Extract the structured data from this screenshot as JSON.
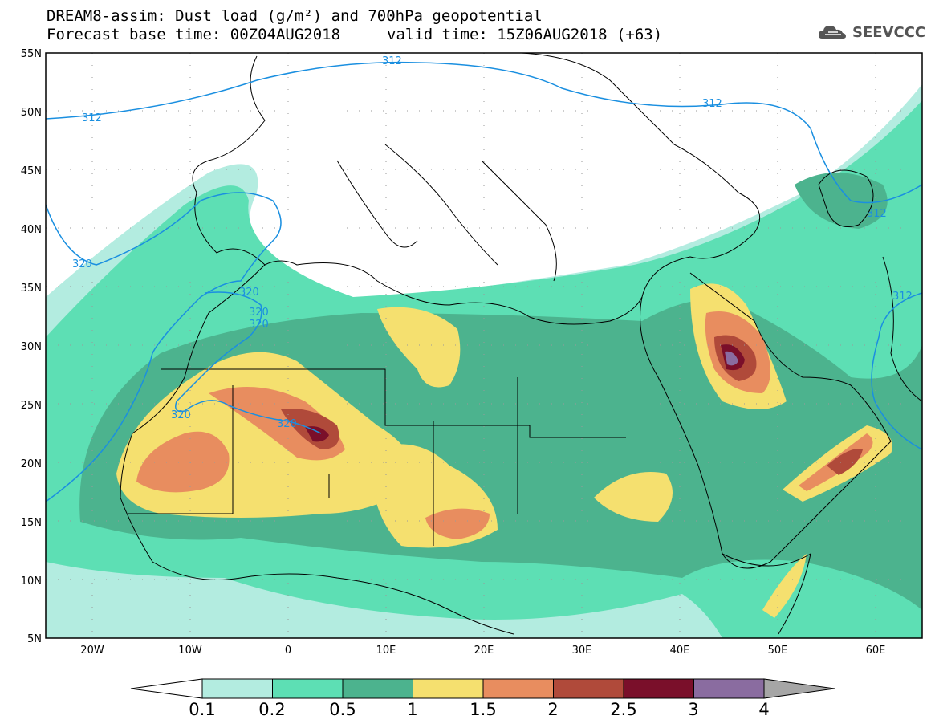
{
  "title": {
    "line1": "DREAM8-assim: Dust load (g/m²) and 700hPa geopotential",
    "line2": "Forecast base time: 00Z04AUG2018",
    "valid": "valid time: 15Z06AUG2018 (+63)"
  },
  "logo": {
    "text": "SEEVCCC",
    "icon": "cloud-logo-icon"
  },
  "axes": {
    "lat_labels": [
      "55N",
      "50N",
      "45N",
      "40N",
      "35N",
      "30N",
      "25N",
      "20N",
      "15N",
      "10N",
      "5N"
    ],
    "lon_labels": [
      "20W",
      "10W",
      "0",
      "10E",
      "20E",
      "30E",
      "40E",
      "50E",
      "60E"
    ]
  },
  "contours": {
    "labels": [
      "312",
      "312",
      "312",
      "312",
      "312",
      "320",
      "320",
      "320",
      "320",
      "320",
      "320"
    ]
  },
  "colorbar": {
    "labels": [
      "0.1",
      "0.2",
      "0.5",
      "1",
      "1.5",
      "2",
      "2.5",
      "3",
      "4"
    ],
    "colors": [
      "#b3ece0",
      "#5ddfb4",
      "#4cb38e",
      "#f5e06f",
      "#e88d5f",
      "#b04a3a",
      "#7a0f2a",
      "#8a6ca0"
    ]
  }
}
